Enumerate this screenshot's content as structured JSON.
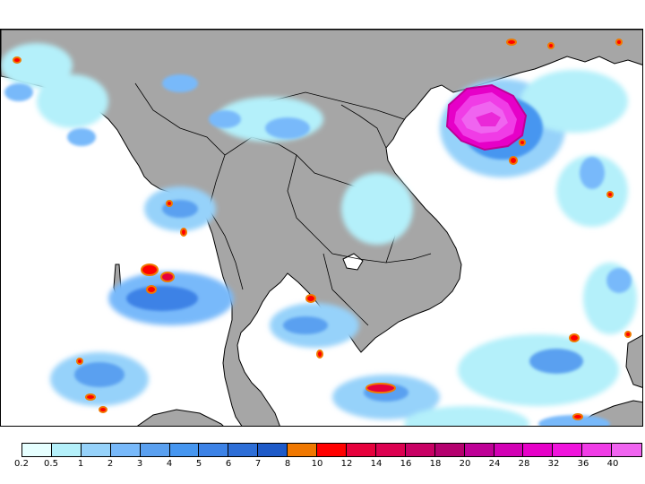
{
  "map": {
    "land_color": "#a6a6a6",
    "ocean_color": "#ffffff",
    "coast_color": "#000000"
  },
  "legend": {
    "labels": [
      "0.2",
      "0.5",
      "1",
      "2",
      "3",
      "4",
      "5",
      "6",
      "7",
      "8",
      "10",
      "12",
      "14",
      "16",
      "18",
      "20",
      "24",
      "28",
      "32",
      "36",
      "40"
    ],
    "colors": [
      "#e6ffff",
      "#b4f0fa",
      "#96d2fa",
      "#78b9fa",
      "#5aa0f0",
      "#4696f0",
      "#3c82e6",
      "#2d6ed7",
      "#1e5ac8",
      "#f07800",
      "#ff0000",
      "#e6003c",
      "#dc0050",
      "#c80064",
      "#b4006e",
      "#be0096",
      "#d200b4",
      "#e600c8",
      "#f014dc",
      "#f03ce6",
      "#f064f0"
    ]
  }
}
